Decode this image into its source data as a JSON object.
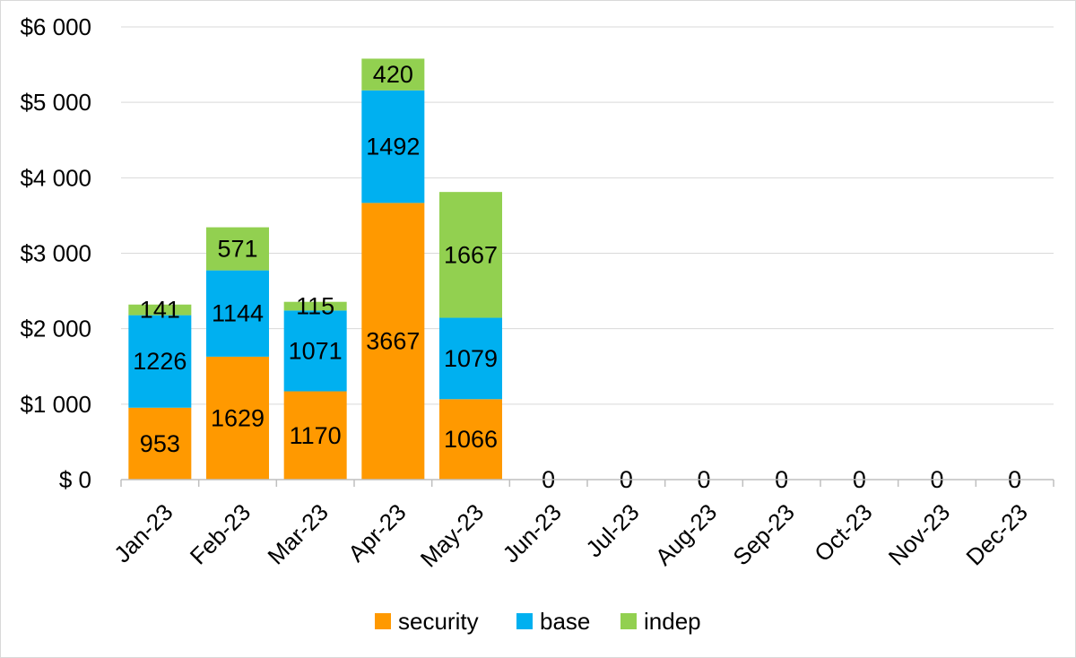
{
  "chart_data": {
    "type": "bar",
    "stacked": true,
    "categories": [
      "Jan-23",
      "Feb-23",
      "Mar-23",
      "Apr-23",
      "May-23",
      "Jun-23",
      "Jul-23",
      "Aug-23",
      "Sep-23",
      "Oct-23",
      "Nov-23",
      "Dec-23"
    ],
    "series": [
      {
        "name": "security",
        "color": "#FF9900",
        "values": [
          953,
          1629,
          1170,
          3667,
          1066,
          0,
          0,
          0,
          0,
          0,
          0,
          0
        ]
      },
      {
        "name": "base",
        "color": "#00B0F0",
        "values": [
          1226,
          1144,
          1071,
          1492,
          1079,
          0,
          0,
          0,
          0,
          0,
          0,
          0
        ]
      },
      {
        "name": "indep",
        "color": "#92D050",
        "values": [
          141,
          571,
          115,
          420,
          1667,
          0,
          0,
          0,
          0,
          0,
          0,
          0
        ]
      }
    ],
    "totals_labels": [
      "",
      "",
      "",
      "",
      "",
      "0",
      "0",
      "0",
      "0",
      "0",
      "0",
      "0"
    ],
    "ylim": [
      0,
      6000
    ],
    "yticks": [
      0,
      1000,
      2000,
      3000,
      4000,
      5000,
      6000
    ],
    "ytick_labels": [
      "$ 0",
      "$1 000",
      "$2 000",
      "$3 000",
      "$4 000",
      "$5 000",
      "$6 000"
    ],
    "grid": true,
    "legend_position": "bottom",
    "title": "",
    "xlabel": "",
    "ylabel": ""
  }
}
